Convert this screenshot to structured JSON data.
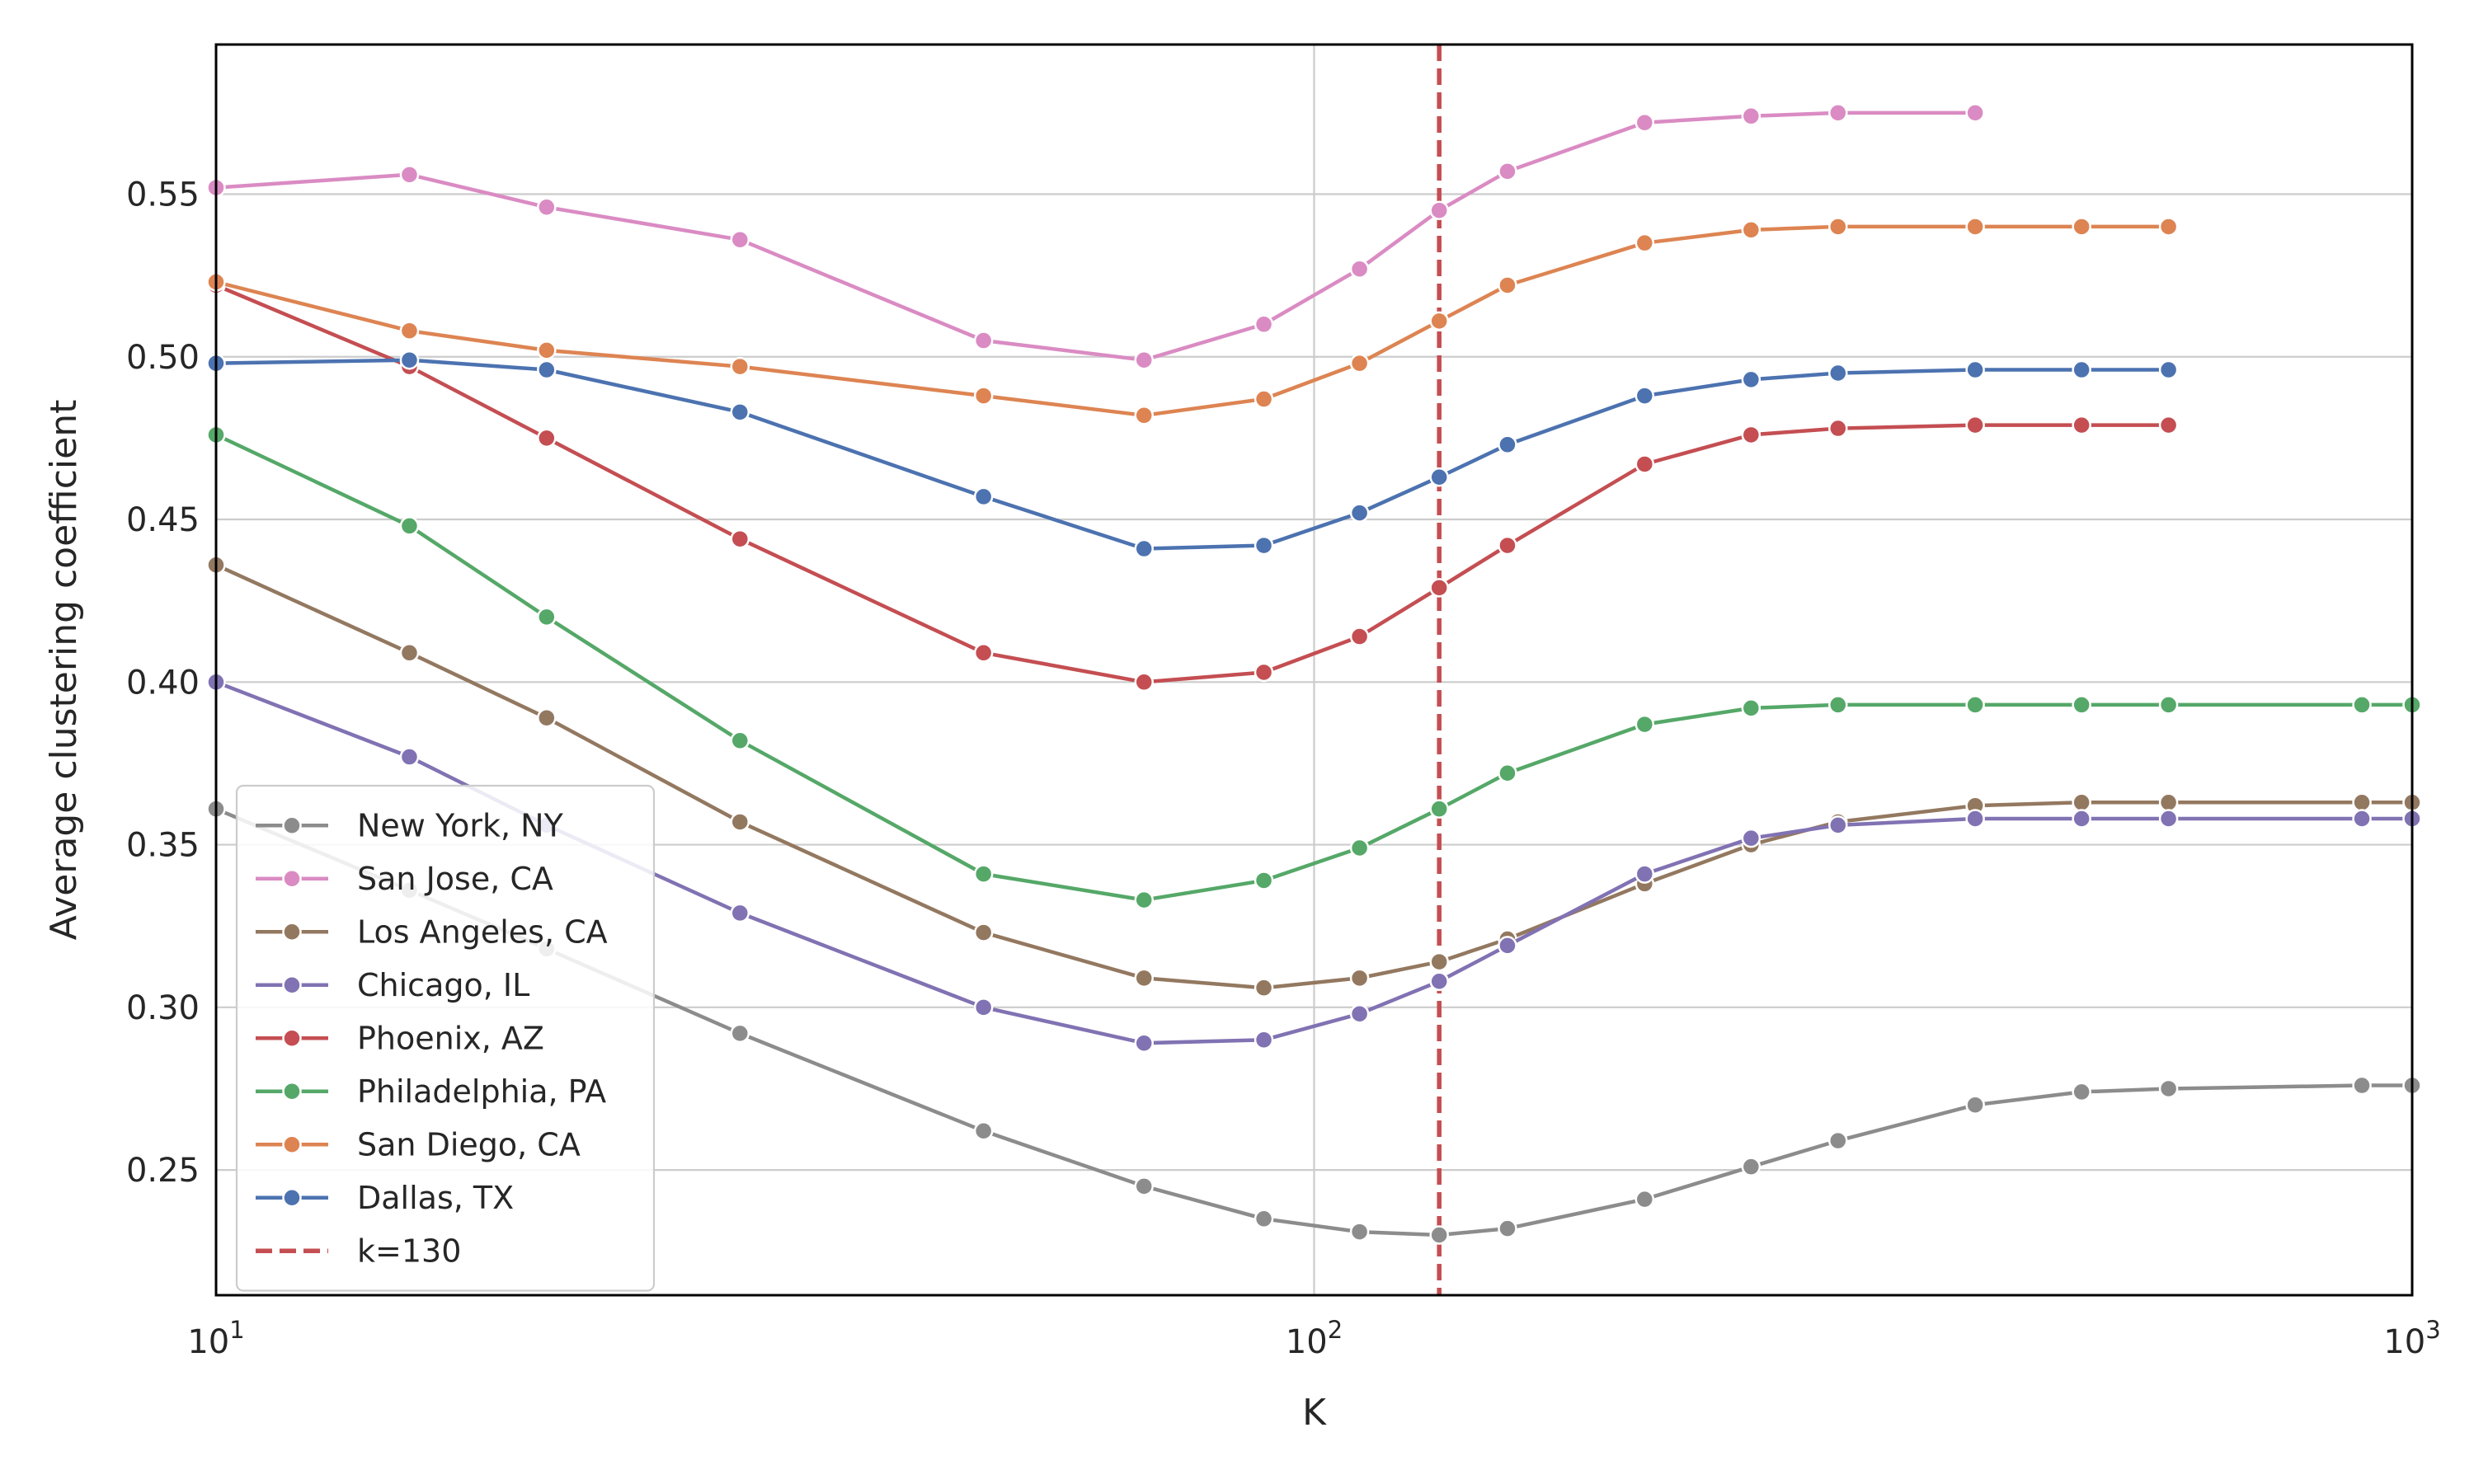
{
  "chart_data": {
    "type": "line",
    "title": "",
    "xlabel": "K",
    "ylabel": "Average clustering coefficient",
    "x_scale": "log",
    "xlim": [
      10,
      1000
    ],
    "ylim": [
      0.2115,
      0.596
    ],
    "x_ticks": [
      {
        "value": 10,
        "base": "10",
        "exp": "1"
      },
      {
        "value": 100,
        "base": "10",
        "exp": "2"
      },
      {
        "value": 1000,
        "base": "10",
        "exp": "3"
      }
    ],
    "y_ticks": [
      {
        "value": 0.25,
        "label": "0.25"
      },
      {
        "value": 0.3,
        "label": "0.30"
      },
      {
        "value": 0.35,
        "label": "0.35"
      },
      {
        "value": 0.4,
        "label": "0.40"
      },
      {
        "value": 0.45,
        "label": "0.45"
      },
      {
        "value": 0.5,
        "label": "0.50"
      },
      {
        "value": 0.55,
        "label": "0.55"
      }
    ],
    "grid": {
      "y": true,
      "x": "major decades"
    },
    "legend_placement": "lower-left",
    "series": [
      {
        "name": "New York, NY",
        "color": "#8c8c8c",
        "x": [
          10,
          15,
          20,
          30,
          50,
          70,
          90,
          110,
          130,
          150,
          200,
          250,
          300,
          400,
          500,
          600,
          900,
          1000
        ],
        "y": [
          0.361,
          0.336,
          0.318,
          0.292,
          0.262,
          0.245,
          0.235,
          0.231,
          0.23,
          0.232,
          0.241,
          0.251,
          0.259,
          0.27,
          0.274,
          0.275,
          0.276,
          0.276
        ]
      },
      {
        "name": "San Jose, CA",
        "color": "#da8bc3",
        "x": [
          10,
          15,
          20,
          30,
          50,
          70,
          90,
          110,
          130,
          150,
          200,
          250,
          300,
          400
        ],
        "y": [
          0.552,
          0.556,
          0.546,
          0.536,
          0.505,
          0.499,
          0.51,
          0.527,
          0.545,
          0.557,
          0.572,
          0.574,
          0.575,
          0.575
        ]
      },
      {
        "name": "Los Angeles, CA",
        "color": "#937860",
        "x": [
          10,
          15,
          20,
          30,
          50,
          70,
          90,
          110,
          130,
          150,
          200,
          250,
          300,
          400,
          500,
          600,
          900,
          1000
        ],
        "y": [
          0.436,
          0.409,
          0.389,
          0.357,
          0.323,
          0.309,
          0.306,
          0.309,
          0.314,
          0.321,
          0.338,
          0.35,
          0.357,
          0.362,
          0.363,
          0.363,
          0.363,
          0.363
        ]
      },
      {
        "name": "Chicago, IL",
        "color": "#8172b3",
        "x": [
          10,
          15,
          20,
          30,
          50,
          70,
          90,
          110,
          130,
          150,
          200,
          250,
          300,
          400,
          500,
          600,
          900,
          1000
        ],
        "y": [
          0.4,
          0.377,
          0.356,
          0.329,
          0.3,
          0.289,
          0.29,
          0.298,
          0.308,
          0.319,
          0.341,
          0.352,
          0.356,
          0.358,
          0.358,
          0.358,
          0.358,
          0.358
        ]
      },
      {
        "name": "Phoenix, AZ",
        "color": "#c44e52",
        "x": [
          10,
          15,
          20,
          30,
          50,
          70,
          90,
          110,
          130,
          150,
          200,
          250,
          300,
          400,
          500,
          600
        ],
        "y": [
          0.522,
          0.497,
          0.475,
          0.444,
          0.409,
          0.4,
          0.403,
          0.414,
          0.429,
          0.442,
          0.467,
          0.476,
          0.478,
          0.479,
          0.479,
          0.479
        ]
      },
      {
        "name": "Philadelphia, PA",
        "color": "#55a868",
        "x": [
          10,
          15,
          20,
          30,
          50,
          70,
          90,
          110,
          130,
          150,
          200,
          250,
          300,
          400,
          500,
          600,
          900,
          1000
        ],
        "y": [
          0.476,
          0.448,
          0.42,
          0.382,
          0.341,
          0.333,
          0.339,
          0.349,
          0.361,
          0.372,
          0.387,
          0.392,
          0.393,
          0.393,
          0.393,
          0.393,
          0.393,
          0.393
        ]
      },
      {
        "name": "San Diego, CA",
        "color": "#dd8452",
        "x": [
          10,
          15,
          20,
          30,
          50,
          70,
          90,
          110,
          130,
          150,
          200,
          250,
          300,
          400,
          500,
          600
        ],
        "y": [
          0.523,
          0.508,
          0.502,
          0.497,
          0.488,
          0.482,
          0.487,
          0.498,
          0.511,
          0.522,
          0.535,
          0.539,
          0.54,
          0.54,
          0.54,
          0.54
        ]
      },
      {
        "name": "Dallas, TX",
        "color": "#4c72b0",
        "x": [
          10,
          15,
          20,
          30,
          50,
          70,
          90,
          110,
          130,
          150,
          200,
          250,
          300,
          400,
          500,
          600
        ],
        "y": [
          0.498,
          0.499,
          0.496,
          0.483,
          0.457,
          0.441,
          0.442,
          0.452,
          0.463,
          0.473,
          0.488,
          0.493,
          0.495,
          0.496,
          0.496,
          0.496
        ]
      }
    ],
    "reference_line": {
      "name": "k=130",
      "x": 130,
      "color": "#c44e52",
      "style": "dashed"
    }
  }
}
